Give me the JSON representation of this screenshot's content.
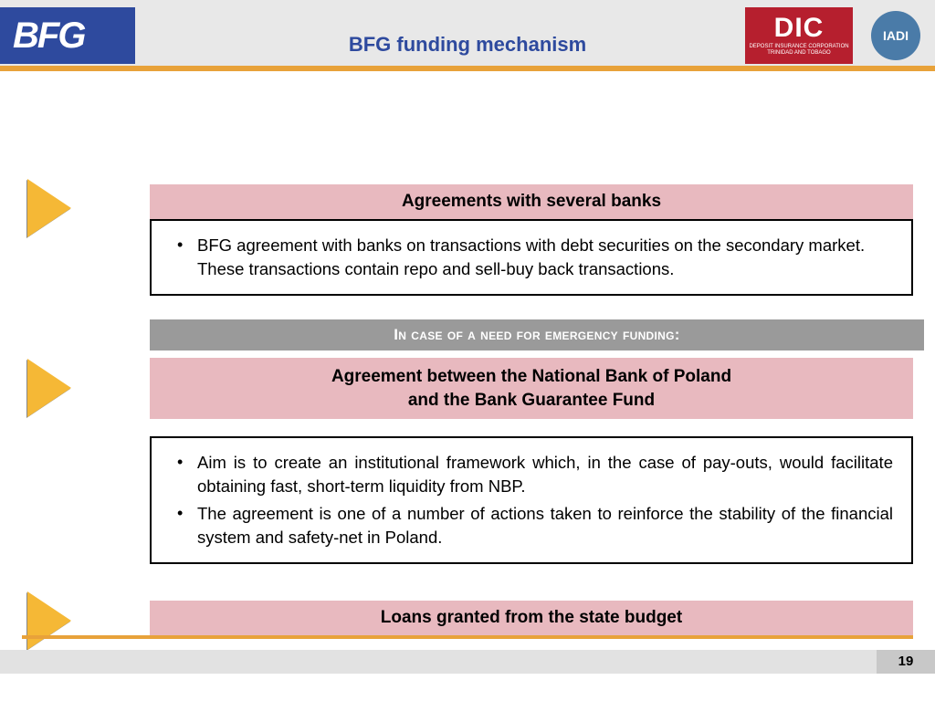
{
  "header": {
    "bfg_logo_text": "BFG",
    "title": "BFG funding mechanism",
    "dic_big": "DIC",
    "dic_line1": "DEPOSIT INSURANCE CORPORATION",
    "dic_line2": "TRINIDAD AND TOBAGO",
    "iadi": "IADI"
  },
  "section1": {
    "heading": "Agreements with several banks",
    "bullets": [
      "BFG agreement with banks on transactions with debt securities on the secondary market. These transactions contain repo and sell-buy back transactions."
    ]
  },
  "emergency_heading": "In case of a need for emergency funding:",
  "section2": {
    "heading_line1": "Agreement between the National Bank of Poland",
    "heading_line2": "and the Bank Guarantee Fund",
    "bullets": [
      "Aim is to create an institutional framework which, in the case of pay-outs, would facilitate obtaining fast, short-term liquidity from NBP.",
      "The agreement is one of a number of actions taken to reinforce the stability of the financial system and safety-net in Poland."
    ]
  },
  "section3": {
    "heading": "Loans granted from the state budget"
  },
  "page_number": "19",
  "colors": {
    "header_bg": "#e8e8e8",
    "brand_blue": "#2e4a9e",
    "accent_orange": "#e8a23a",
    "arrow_fill": "#f5b836",
    "pink_band": "#e8b9bf",
    "gray_band": "#9a9a9a",
    "dic_red": "#b61f2e",
    "iadi_blue": "#4a7ba8",
    "footer_gray": "#e2e2e2",
    "pagebox_gray": "#c8c8c8"
  }
}
